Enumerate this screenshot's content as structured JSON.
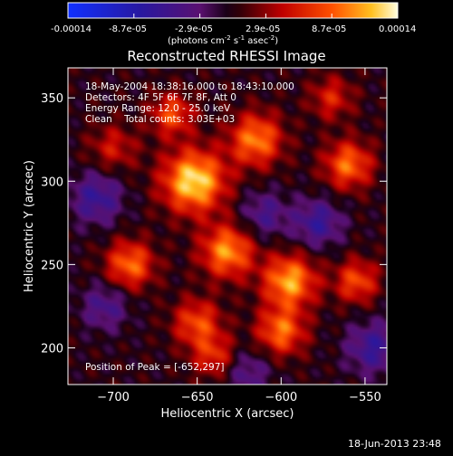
{
  "colorbar": {
    "ticks": [
      "-0.00014",
      "-8.7e-05",
      "-2.9e-05",
      "2.9e-05",
      "8.7e-05",
      "0.00014"
    ],
    "units_prefix": "(photons cm",
    "units_exp1": "-2",
    "units_mid": " s",
    "units_exp2": "-1",
    "units_mid2": " asec",
    "units_exp3": "-2",
    "units_suffix": ")"
  },
  "plot_title": "Reconstructed RHESSI Image",
  "info": {
    "line1": "18-May-2004 18:38:16.000 to 18:43:10.000",
    "line2": "Detectors: 4F 5F 6F 7F 8F, Att 0",
    "line3": "Energy Range: 12.0 - 25.0 keV",
    "line4": "Clean    Total counts: 3.03E+03",
    "peak": "Position of Peak = [-652,297]"
  },
  "footer_timestamp": "18-Jun-2013 23:48",
  "chart_data": {
    "type": "heatmap",
    "title": "Reconstructed RHESSI Image",
    "xlabel": "Heliocentric X (arcsec)",
    "ylabel": "Heliocentric Y (arcsec)",
    "xlim": [
      -727,
      -537
    ],
    "ylim": [
      178,
      368
    ],
    "x_ticks": [
      -700,
      -650,
      -600,
      -550
    ],
    "y_ticks": [
      200,
      250,
      300,
      350
    ],
    "colorbar_range": [
      -0.00014,
      0.00014
    ],
    "peak_position": [
      -652,
      297
    ],
    "blobs": [
      {
        "x": -652,
        "y": 300,
        "a": 0.95,
        "s": 13
      },
      {
        "x": -632,
        "y": 258,
        "a": 0.75,
        "s": 11
      },
      {
        "x": -615,
        "y": 325,
        "a": 0.7,
        "s": 11
      },
      {
        "x": -595,
        "y": 240,
        "a": 0.8,
        "s": 11
      },
      {
        "x": -600,
        "y": 210,
        "a": 0.65,
        "s": 10
      },
      {
        "x": -560,
        "y": 310,
        "a": 0.65,
        "s": 10
      },
      {
        "x": -555,
        "y": 240,
        "a": 0.55,
        "s": 9
      },
      {
        "x": -650,
        "y": 215,
        "a": 0.55,
        "s": 10
      },
      {
        "x": -690,
        "y": 250,
        "a": 0.65,
        "s": 10
      },
      {
        "x": -665,
        "y": 340,
        "a": 0.55,
        "s": 9
      },
      {
        "x": -700,
        "y": 320,
        "a": 0.35,
        "s": 10
      },
      {
        "x": -640,
        "y": 195,
        "a": 0.45,
        "s": 9
      },
      {
        "x": -570,
        "y": 350,
        "a": 0.4,
        "s": 9
      },
      {
        "x": -710,
        "y": 290,
        "a": -0.45,
        "s": 11
      },
      {
        "x": -705,
        "y": 225,
        "a": -0.35,
        "s": 10
      },
      {
        "x": -610,
        "y": 280,
        "a": -0.35,
        "s": 10
      },
      {
        "x": -578,
        "y": 275,
        "a": -0.45,
        "s": 10
      },
      {
        "x": -545,
        "y": 200,
        "a": -0.45,
        "s": 11
      },
      {
        "x": -620,
        "y": 185,
        "a": -0.3,
        "s": 10
      }
    ]
  }
}
